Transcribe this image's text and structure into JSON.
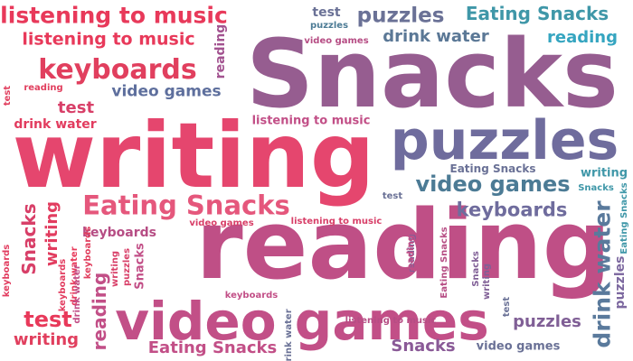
{
  "cloud": {
    "words": [
      {
        "text": "Snacks",
        "color": "#965d90"
      },
      {
        "text": "writing",
        "color": "#e5466e"
      },
      {
        "text": "reading",
        "color": "#bf4f86"
      },
      {
        "text": "video games",
        "color": "#c24f87"
      },
      {
        "text": "puzzles",
        "color": "#6f6c9d"
      },
      {
        "text": "listening to music",
        "color": "#e8395a"
      },
      {
        "text": "listening to music",
        "color": "#e8395a"
      },
      {
        "text": "keyboards",
        "color": "#e13f5e"
      },
      {
        "text": "Eating Snacks",
        "color": "#e5577c"
      },
      {
        "text": "video games",
        "color": "#5e6f9d"
      },
      {
        "text": "keyboards",
        "color": "#6f6c9d"
      },
      {
        "text": "puzzles",
        "color": "#6a7196"
      },
      {
        "text": "Eating Snacks",
        "color": "#3f97a8"
      },
      {
        "text": "drink water",
        "color": "#5b7896"
      },
      {
        "text": "reading",
        "color": "#35a5c0"
      },
      {
        "text": "test",
        "color": "#6a7196"
      },
      {
        "text": "video games",
        "color": "#b64d84"
      },
      {
        "text": "test",
        "color": "#d83f68"
      },
      {
        "text": "drink water",
        "color": "#e23c5f"
      },
      {
        "text": "listening to music",
        "color": "#c24f87"
      },
      {
        "text": "reading",
        "color": "#a35390"
      },
      {
        "text": "test",
        "color": "#e13f5e"
      },
      {
        "text": "reading",
        "color": "#e13f5e"
      },
      {
        "text": "puzzles",
        "color": "#4c7b95"
      },
      {
        "text": "video games",
        "color": "#4c7b95"
      },
      {
        "text": "Eating Snacks",
        "color": "#6a7196"
      },
      {
        "text": "writing",
        "color": "#3f97a8"
      },
      {
        "text": "Snacks",
        "color": "#3f97a8"
      },
      {
        "text": "test",
        "color": "#6a7196"
      },
      {
        "text": "video games",
        "color": "#d83f68"
      },
      {
        "text": "listening to music",
        "color": "#d83f68"
      },
      {
        "text": "keyboards",
        "color": "#b64d84"
      },
      {
        "text": "Snacks",
        "color": "#d83f68"
      },
      {
        "text": "writing",
        "color": "#e23c5f"
      },
      {
        "text": "keyboards",
        "color": "#e23c5f"
      },
      {
        "text": "drink water",
        "color": "#5a7a9c"
      },
      {
        "text": "puzzles",
        "color": "#7d69a0"
      },
      {
        "text": "Eating Snacks",
        "color": "#3f97a8"
      },
      {
        "text": "test",
        "color": "#e8395a"
      },
      {
        "text": "writing",
        "color": "#e13f5e"
      },
      {
        "text": "Eating Snacks",
        "color": "#c24f87"
      },
      {
        "text": "Snacks",
        "color": "#8a5a97"
      },
      {
        "text": "video games",
        "color": "#6a7196"
      },
      {
        "text": "puzzles",
        "color": "#805f96"
      },
      {
        "text": "keyboards",
        "color": "#e13f5e"
      },
      {
        "text": "drink water",
        "color": "#e8395a"
      },
      {
        "text": "keyboards",
        "color": "#e23c5f"
      },
      {
        "text": "reading",
        "color": "#c24f87"
      },
      {
        "text": "writing",
        "color": "#d83f68"
      },
      {
        "text": "puzzles",
        "color": "#d83f68"
      },
      {
        "text": "Snacks",
        "color": "#c24f87"
      },
      {
        "text": "keyboards",
        "color": "#c24f87"
      },
      {
        "text": "drink water",
        "color": "#6a7196"
      },
      {
        "text": "listening to music",
        "color": "#b64d84"
      },
      {
        "text": "reading",
        "color": "#805f96"
      },
      {
        "text": "Eating Snacks",
        "color": "#b64d84"
      },
      {
        "text": "Snacks",
        "color": "#805f96"
      },
      {
        "text": "writing",
        "color": "#805f96"
      },
      {
        "text": "test",
        "color": "#6a7196"
      },
      {
        "text": "drink water",
        "color": "#c24f87"
      },
      {
        "text": "reading",
        "color": "#c24f87"
      }
    ]
  }
}
